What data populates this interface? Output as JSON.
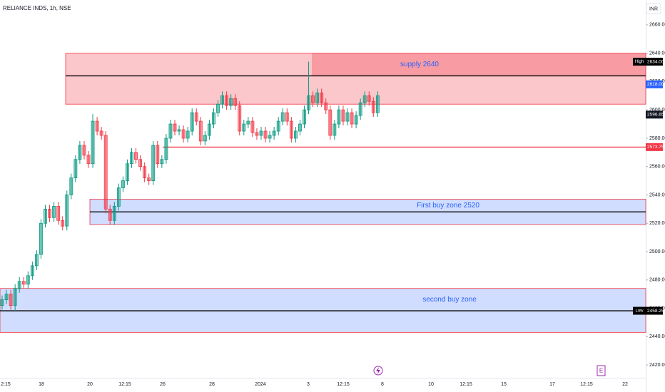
{
  "chart_data": {
    "type": "candlestick",
    "title": "RELIANCE INDS, 1h, NSE",
    "currency": "INR",
    "ylim": [
      2410,
      2675
    ],
    "yticks": [
      {
        "value": 2420,
        "label": "2420.00"
      },
      {
        "value": 2440,
        "label": "2440.00"
      },
      {
        "value": 2460,
        "label": "2460.00"
      },
      {
        "value": 2480,
        "label": "2480.00"
      },
      {
        "value": 2500,
        "label": "2500.00"
      },
      {
        "value": 2520,
        "label": "2520.00"
      },
      {
        "value": 2540,
        "label": "2540.00"
      },
      {
        "value": 2560,
        "label": "2560.00"
      },
      {
        "value": 2580,
        "label": "2580.00"
      },
      {
        "value": 2600,
        "label": "2600.00"
      },
      {
        "value": 2620,
        "label": "2620.00"
      },
      {
        "value": 2640,
        "label": "2640.00"
      },
      {
        "value": 2660,
        "label": "2660.00"
      }
    ],
    "x_labels": [
      "2:15",
      "18",
      "20",
      "12:15",
      "26",
      "28",
      "2024",
      "3",
      "12:15",
      "8",
      "10",
      "12:15",
      "15",
      "17",
      "12:15",
      "22"
    ],
    "up_color": "#089981",
    "down_color": "#f23645",
    "series": {
      "open": [
        2462,
        2466,
        2470,
        2462,
        2474,
        2479,
        2477,
        2483,
        2490,
        2498,
        2520,
        2530,
        2524,
        2532,
        2522,
        2518,
        2540,
        2552,
        2565,
        2575,
        2568,
        2562,
        2592,
        2585,
        2582,
        2530,
        2522,
        2532,
        2545,
        2550,
        2562,
        2570,
        2565,
        2560,
        2552,
        2550,
        2575,
        2562,
        2565,
        2580,
        2590,
        2585,
        2586,
        2580,
        2585,
        2598,
        2592,
        2578,
        2582,
        2590,
        2598,
        2604,
        2610,
        2603,
        2608,
        2603,
        2585,
        2590,
        2592,
        2584,
        2582,
        2585,
        2580,
        2582,
        2585,
        2592,
        2598,
        2592,
        2580,
        2585,
        2590,
        2600,
        2610,
        2605,
        2612,
        2605,
        2600,
        2582,
        2590,
        2600,
        2592,
        2598,
        2590,
        2596,
        2605,
        2610,
        2606,
        2598
      ],
      "high": [
        2469,
        2473,
        2473,
        2477,
        2482,
        2482,
        2486,
        2493,
        2501,
        2523,
        2533,
        2533,
        2535,
        2535,
        2525,
        2543,
        2555,
        2568,
        2578,
        2578,
        2571,
        2597,
        2595,
        2588,
        2585,
        2533,
        2535,
        2548,
        2553,
        2565,
        2573,
        2573,
        2568,
        2563,
        2555,
        2578,
        2578,
        2568,
        2583,
        2593,
        2593,
        2589,
        2589,
        2588,
        2601,
        2601,
        2595,
        2585,
        2593,
        2601,
        2607,
        2613,
        2613,
        2611,
        2611,
        2606,
        2593,
        2595,
        2595,
        2587,
        2588,
        2588,
        2585,
        2588,
        2595,
        2601,
        2601,
        2595,
        2588,
        2593,
        2603,
        2634,
        2613,
        2615,
        2615,
        2608,
        2603,
        2593,
        2603,
        2603,
        2601,
        2601,
        2599,
        2608,
        2613,
        2613,
        2609,
        2613
      ],
      "low": [
        2459,
        2463,
        2459,
        2458.25,
        2471,
        2474,
        2474,
        2480,
        2487,
        2495,
        2517,
        2521,
        2521,
        2519,
        2515,
        2515,
        2537,
        2549,
        2562,
        2565,
        2559,
        2559,
        2582,
        2579,
        2527,
        2519,
        2519,
        2529,
        2542,
        2547,
        2559,
        2562,
        2557,
        2549,
        2547,
        2547,
        2559,
        2559,
        2562,
        2577,
        2582,
        2582,
        2577,
        2577,
        2582,
        2589,
        2575,
        2575,
        2579,
        2587,
        2595,
        2601,
        2600,
        2600,
        2600,
        2582,
        2582,
        2587,
        2581,
        2579,
        2579,
        2577,
        2577,
        2579,
        2582,
        2589,
        2589,
        2577,
        2577,
        2582,
        2587,
        2597,
        2602,
        2602,
        2602,
        2597,
        2579,
        2579,
        2587,
        2589,
        2589,
        2587,
        2587,
        2593,
        2602,
        2603,
        2595,
        2595
      ],
      "close": [
        2466,
        2470,
        2462,
        2474,
        2479,
        2477,
        2483,
        2490,
        2498,
        2520,
        2530,
        2524,
        2532,
        2522,
        2518,
        2540,
        2552,
        2565,
        2575,
        2568,
        2562,
        2592,
        2585,
        2582,
        2530,
        2522,
        2532,
        2545,
        2550,
        2562,
        2570,
        2565,
        2560,
        2552,
        2550,
        2575,
        2562,
        2565,
        2580,
        2590,
        2585,
        2586,
        2580,
        2585,
        2598,
        2592,
        2578,
        2582,
        2590,
        2598,
        2604,
        2610,
        2603,
        2608,
        2603,
        2585,
        2590,
        2592,
        2584,
        2582,
        2585,
        2580,
        2582,
        2585,
        2592,
        2598,
        2592,
        2580,
        2585,
        2590,
        2600,
        2610,
        2605,
        2612,
        2605,
        2600,
        2582,
        2590,
        2600,
        2592,
        2598,
        2590,
        2596,
        2605,
        2610,
        2606,
        2598,
        2610
      ]
    },
    "zones": [
      {
        "label": "supply  2640",
        "top": 2640,
        "bottom": 2604,
        "line": 2624
      },
      {
        "label": "First buy zone 2520",
        "top": 2537,
        "bottom": 2519,
        "line": 2528
      },
      {
        "label": "second buy zone",
        "top": 2474,
        "bottom": 2443,
        "line": 2458.25
      }
    ],
    "level": 2573.75,
    "price_labels": [
      {
        "tag": "High",
        "value": 2634,
        "label": "2634.00",
        "color": "#000000"
      },
      {
        "value": 2618,
        "label": "2618.00",
        "color": "#2962ff"
      },
      {
        "value": 2596.65,
        "label": "2596.65",
        "color": "#131722"
      },
      {
        "value": 2573.75,
        "label": "2573.75",
        "color": "#f23645"
      },
      {
        "tag": "Low",
        "value": 2458.25,
        "label": "2458.25",
        "color": "#000000"
      }
    ],
    "event_label": "E"
  }
}
